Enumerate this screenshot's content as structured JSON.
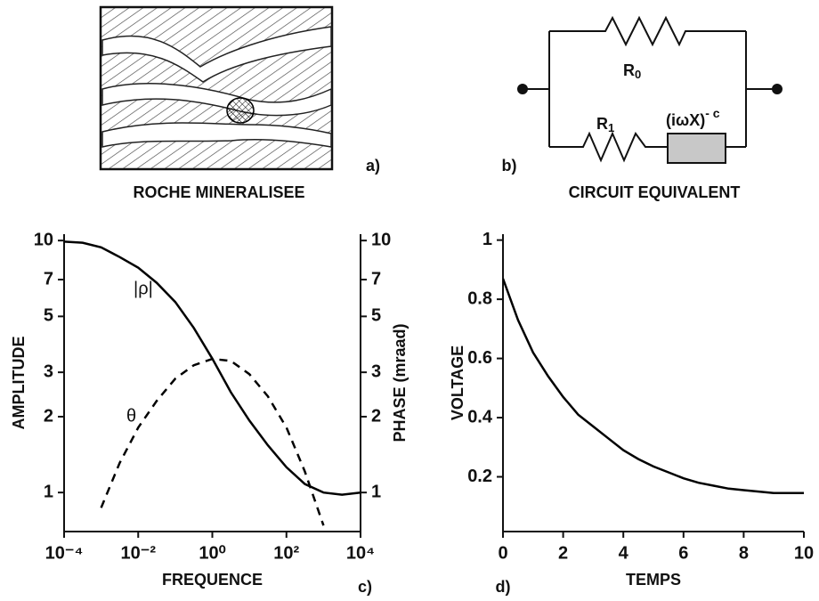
{
  "panel_a": {
    "letter": "a)",
    "caption": "ROCHE MINERALISEE"
  },
  "panel_b": {
    "letter": "b)",
    "caption": "CIRCUIT EQUIVALENT",
    "r0": {
      "text": "R",
      "sub": "0"
    },
    "r1": {
      "text": "R",
      "sub": "1"
    },
    "impedance": {
      "text": "(iωX)",
      "sup": "- c"
    }
  },
  "chart_data": [
    {
      "type": "line",
      "letter": "c)",
      "xlabel": "FREQUENCE",
      "ylabel": "AMPLITUDE",
      "y2label": "PHASE (mraad)",
      "xscale": "log",
      "yscale": "log",
      "xlim": [
        0.0001,
        10000
      ],
      "xticks": [
        {
          "value": 0.0001,
          "label": "10⁻⁴"
        },
        {
          "value": 0.01,
          "label": "10⁻²"
        },
        {
          "value": 1,
          "label": "10⁰"
        },
        {
          "value": 100,
          "label": "10²"
        },
        {
          "value": 10000,
          "label": "10⁴"
        }
      ],
      "ylim": [
        0.7,
        10.6
      ],
      "yticks": [
        1,
        2,
        3,
        5,
        7,
        10
      ],
      "y2lim": [
        0.7,
        10.6
      ],
      "y2ticks": [
        1,
        2,
        3,
        5,
        7,
        10
      ],
      "annotations": [
        {
          "text": "|ρ|"
        },
        {
          "text": "θ"
        }
      ],
      "series": [
        {
          "name": "|ρ|",
          "color": "#000000",
          "dash": false,
          "x": [
            0.0001,
            0.000316,
            0.001,
            0.00316,
            0.01,
            0.0316,
            0.1,
            0.316,
            1,
            3.16,
            10,
            31.6,
            100,
            316,
            1000,
            3160,
            10000
          ],
          "values": [
            9.9,
            9.8,
            9.4,
            8.6,
            7.8,
            6.8,
            5.7,
            4.5,
            3.4,
            2.5,
            1.93,
            1.54,
            1.26,
            1.08,
            1.0,
            0.98,
            1.0
          ]
        },
        {
          "name": "θ",
          "color": "#000000",
          "dash": true,
          "axis": "y2",
          "x": [
            0.001,
            0.00316,
            0.01,
            0.0316,
            0.1,
            0.316,
            1,
            3.16,
            10,
            31.6,
            100,
            316,
            1000
          ],
          "values": [
            0.87,
            1.31,
            1.81,
            2.31,
            2.83,
            3.2,
            3.39,
            3.33,
            2.95,
            2.41,
            1.81,
            1.21,
            0.74
          ]
        }
      ]
    },
    {
      "type": "line",
      "letter": "d)",
      "xlabel": "TEMPS",
      "ylabel": "VOLTAGE",
      "xlim": [
        0,
        10
      ],
      "xticks": [
        0,
        2,
        4,
        6,
        8,
        10
      ],
      "ylim": [
        0.015,
        1.02
      ],
      "yticks": [
        0.2,
        0.4,
        0.6,
        0.8,
        1
      ],
      "series": [
        {
          "name": "VOLTAGE",
          "color": "#000000",
          "dash": false,
          "x": [
            0,
            0.5,
            1,
            1.5,
            2,
            2.5,
            3,
            3.5,
            4,
            4.5,
            5,
            5.5,
            6,
            6.5,
            7,
            7.5,
            8,
            8.5,
            9,
            9.5,
            10
          ],
          "values": [
            0.87,
            0.73,
            0.62,
            0.54,
            0.47,
            0.41,
            0.37,
            0.33,
            0.29,
            0.26,
            0.235,
            0.215,
            0.195,
            0.18,
            0.17,
            0.16,
            0.155,
            0.15,
            0.145,
            0.145,
            0.145
          ]
        }
      ]
    }
  ]
}
